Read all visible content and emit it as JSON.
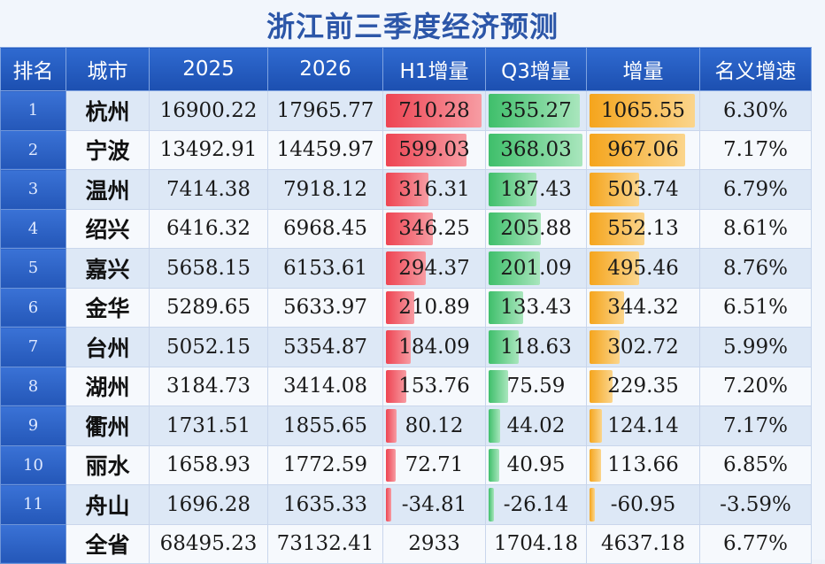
{
  "title": "浙江前三季度经济预测",
  "headers": [
    "排名",
    "城市",
    "2025",
    "2026",
    "H1增量",
    "Q3增量",
    "增量",
    "名义增速"
  ],
  "max": {
    "h1": 710.28,
    "q3": 368.03,
    "inc": 1065.55
  },
  "rows": [
    {
      "rank": "1",
      "city": "杭州",
      "y2025": "16900.22",
      "y2026": "17965.77",
      "h1": "710.28",
      "q3": "355.27",
      "inc": "1065.55",
      "growth": "6.30%"
    },
    {
      "rank": "2",
      "city": "宁波",
      "y2025": "13492.91",
      "y2026": "14459.97",
      "h1": "599.03",
      "q3": "368.03",
      "inc": "967.06",
      "growth": "7.17%"
    },
    {
      "rank": "3",
      "city": "温州",
      "y2025": "7414.38",
      "y2026": "7918.12",
      "h1": "316.31",
      "q3": "187.43",
      "inc": "503.74",
      "growth": "6.79%"
    },
    {
      "rank": "4",
      "city": "绍兴",
      "y2025": "6416.32",
      "y2026": "6968.45",
      "h1": "346.25",
      "q3": "205.88",
      "inc": "552.13",
      "growth": "8.61%"
    },
    {
      "rank": "5",
      "city": "嘉兴",
      "y2025": "5658.15",
      "y2026": "6153.61",
      "h1": "294.37",
      "q3": "201.09",
      "inc": "495.46",
      "growth": "8.76%"
    },
    {
      "rank": "6",
      "city": "金华",
      "y2025": "5289.65",
      "y2026": "5633.97",
      "h1": "210.89",
      "q3": "133.43",
      "inc": "344.32",
      "growth": "6.51%"
    },
    {
      "rank": "7",
      "city": "台州",
      "y2025": "5052.15",
      "y2026": "5354.87",
      "h1": "184.09",
      "q3": "118.63",
      "inc": "302.72",
      "growth": "5.99%"
    },
    {
      "rank": "8",
      "city": "湖州",
      "y2025": "3184.73",
      "y2026": "3414.08",
      "h1": "153.76",
      "q3": "75.59",
      "inc": "229.35",
      "growth": "7.20%"
    },
    {
      "rank": "9",
      "city": "衢州",
      "y2025": "1731.51",
      "y2026": "1855.65",
      "h1": "80.12",
      "q3": "44.02",
      "inc": "124.14",
      "growth": "7.17%"
    },
    {
      "rank": "10",
      "city": "丽水",
      "y2025": "1658.93",
      "y2026": "1772.59",
      "h1": "72.71",
      "q3": "40.95",
      "inc": "113.66",
      "growth": "6.85%"
    },
    {
      "rank": "11",
      "city": "舟山",
      "y2025": "1696.28",
      "y2026": "1635.33",
      "h1": "-34.81",
      "q3": "-26.14",
      "inc": "-60.95",
      "growth": "-3.59%"
    },
    {
      "rank": "",
      "city": "全省",
      "y2025": "68495.23",
      "y2026": "73132.41",
      "h1": "2933",
      "q3": "1704.18",
      "inc": "4637.18",
      "growth": "6.77%"
    }
  ]
}
